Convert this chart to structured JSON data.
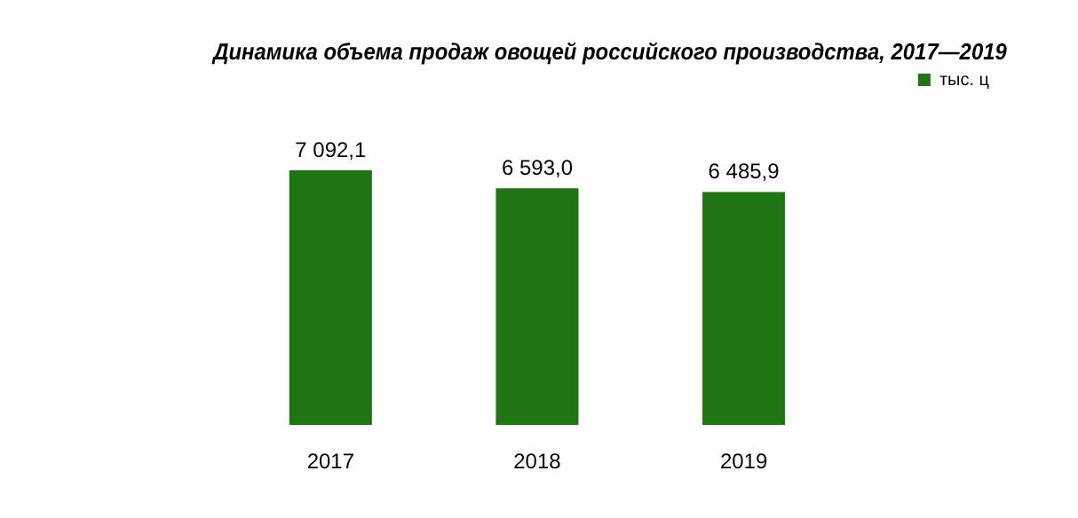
{
  "chart_data": {
    "type": "bar",
    "title": "Динамика объема продаж овощей российского производства, 2017—2019",
    "categories": [
      "2017",
      "2018",
      "2019"
    ],
    "series": [
      {
        "name": "тыс. ц",
        "color": "#1e7512",
        "values": [
          7092.1,
          6593.0,
          6485.9
        ],
        "value_labels": [
          "7 092,1",
          "6 593,0",
          "6 485,9"
        ]
      }
    ],
    "grid": false,
    "legend": "right"
  }
}
